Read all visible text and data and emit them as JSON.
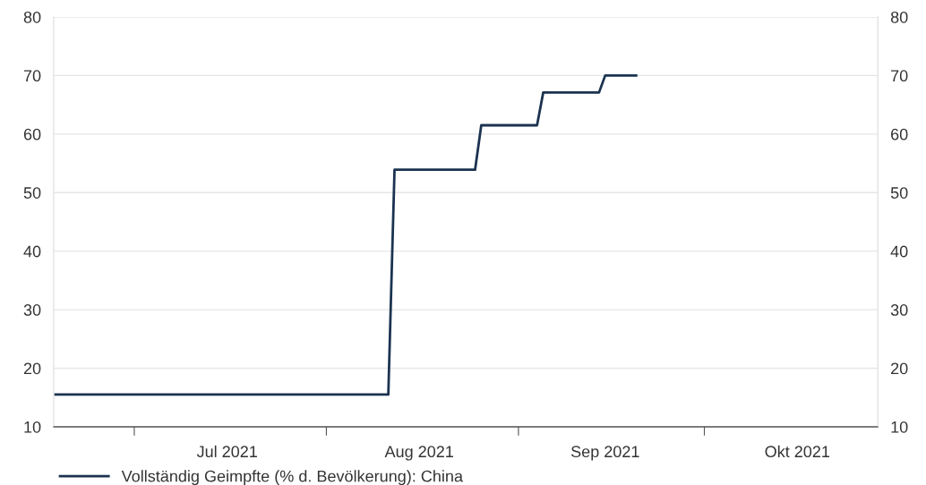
{
  "chart_data": {
    "type": "line",
    "x": [
      "2021-06-18",
      "2021-08-11",
      "2021-08-12",
      "2021-08-25",
      "2021-08-26",
      "2021-09-04",
      "2021-09-05",
      "2021-09-14",
      "2021-09-15",
      "2021-09-20"
    ],
    "series": [
      {
        "name": "Vollständig Geimpfte (% d. Bevölkerung): China",
        "color": "#1b3350",
        "values": [
          15.5,
          15.5,
          53.9,
          53.9,
          61.5,
          61.5,
          67.1,
          67.1,
          70.0,
          70.0
        ]
      }
    ],
    "xlim": [
      "2021-06-18",
      "2021-10-29"
    ],
    "xticks": [
      {
        "value": "2021-07-01",
        "label": null
      },
      {
        "value": "2021-08-01",
        "label": null
      },
      {
        "value": "2021-09-01",
        "label": null
      },
      {
        "value": "2021-10-01",
        "label": null
      },
      {
        "value": "2021-07-16",
        "label": "Jul 2021"
      },
      {
        "value": "2021-08-16",
        "label": "Aug 2021"
      },
      {
        "value": "2021-09-15",
        "label": "Sep 2021"
      },
      {
        "value": "2021-10-16",
        "label": "Okt 2021"
      }
    ],
    "ylim": [
      10,
      80
    ],
    "yticks": [
      10,
      20,
      30,
      40,
      50,
      60,
      70,
      80
    ],
    "y2lim": [
      10,
      80
    ],
    "y2ticks": [
      10,
      20,
      30,
      40,
      50,
      60,
      70,
      80
    ],
    "grid": "y",
    "legend": "bottom left",
    "marker": "none",
    "line_style": "solid"
  }
}
